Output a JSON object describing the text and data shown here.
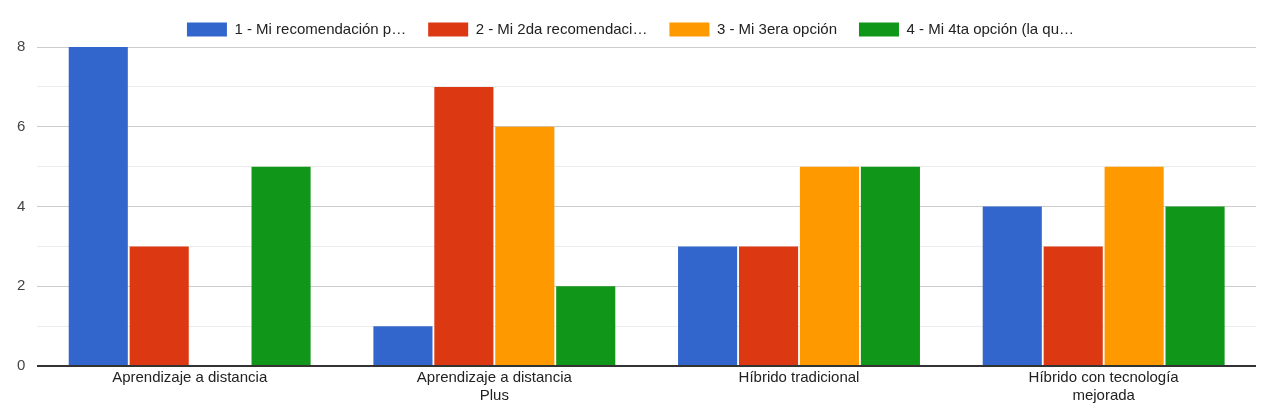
{
  "chart_data": {
    "type": "bar",
    "categories": [
      "Aprendizaje a distancia",
      "Aprendizaje a distancia Plus",
      "Híbrido tradicional",
      "Híbrido con tecnología mejorada"
    ],
    "series": [
      {
        "name": "1 - Mi recomendación p…",
        "color": "#3366cc",
        "values": [
          8,
          1,
          3,
          4
        ]
      },
      {
        "name": "2 - Mi 2da recomendaci…",
        "color": "#dc3912",
        "values": [
          3,
          7,
          3,
          3
        ]
      },
      {
        "name": "3 - Mi 3era opción",
        "color": "#ff9900",
        "values": [
          0,
          6,
          5,
          5
        ]
      },
      {
        "name": "4 - Mi 4ta opción (la qu…",
        "color": "#109618",
        "values": [
          5,
          2,
          5,
          4
        ]
      }
    ],
    "ylim": [
      0,
      8
    ],
    "yticks": [
      0,
      {
        "value": 1,
        "label": null
      },
      2,
      {
        "value": 3,
        "label": null
      },
      4,
      {
        "value": 5,
        "label": null
      },
      6,
      {
        "value": 7,
        "label": null
      },
      8
    ],
    "grid": "y",
    "legend": "top"
  }
}
